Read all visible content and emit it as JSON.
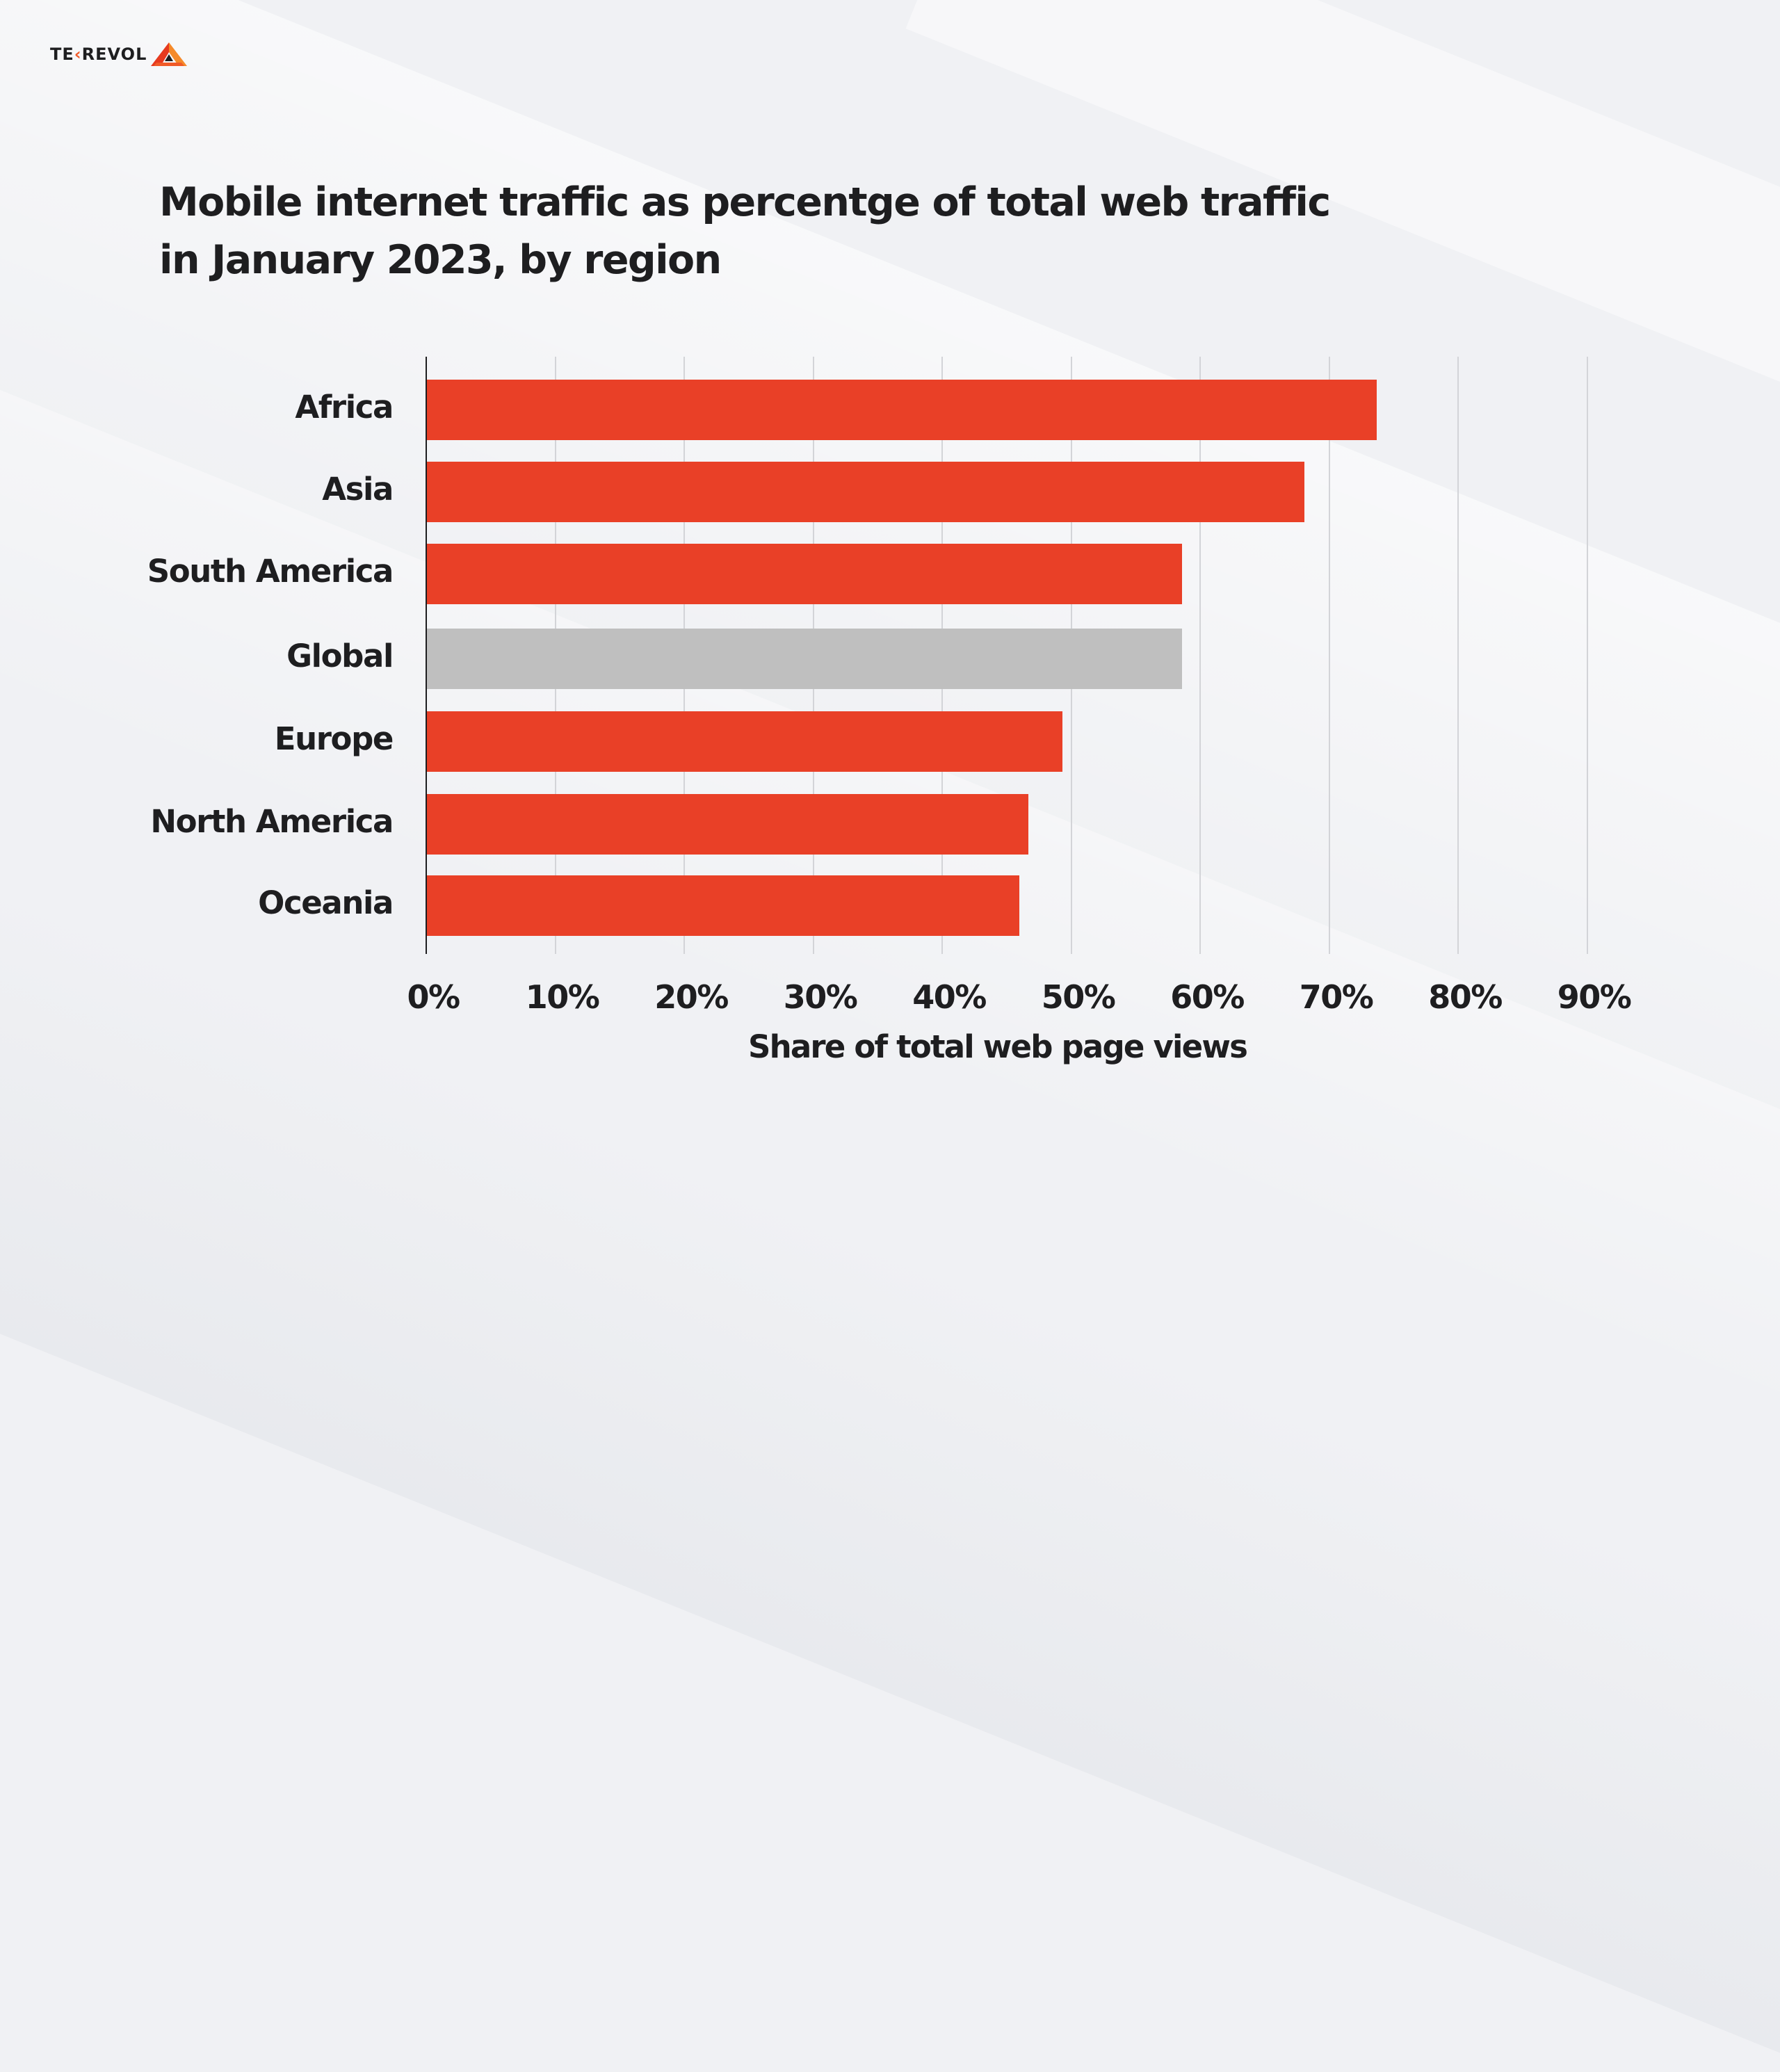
{
  "brand": {
    "logo_text_prefix": "TE",
    "logo_text_accent": "‹",
    "logo_text_suffix": "REVOL",
    "logo_colors": {
      "text": "#1E1E20",
      "accent": "#F05A28",
      "triangle_light": "#F58A2A",
      "triangle_dark": "#E63A1F"
    }
  },
  "title": {
    "line1": "Mobile internet traffic as percentge of total web traffic",
    "line2": "in January 2023, by region"
  },
  "colors": {
    "background": "#F0F1F4",
    "bar_primary": "#E94027",
    "bar_highlight": "#BFBFBF",
    "gridline": "#D3D4D8",
    "axis": "#1E1E20",
    "text": "#1E1E20"
  },
  "chart_data": {
    "type": "bar",
    "orientation": "horizontal",
    "title": "Mobile internet traffic as percentge of total web traffic in January 2023, by region",
    "xlabel": "Share of total web page views",
    "ylabel": "",
    "categories": [
      "Africa",
      "Asia",
      "South America",
      "Global",
      "Europe",
      "North America",
      "Oceania"
    ],
    "values": [
      73.7,
      68.1,
      58.6,
      58.6,
      49.3,
      46.7,
      46.0
    ],
    "bar_colors": [
      "#E94027",
      "#E94027",
      "#E94027",
      "#BFBFBF",
      "#E94027",
      "#E94027",
      "#E94027"
    ],
    "unit": "%",
    "xlim": [
      0,
      90
    ],
    "xticks": [
      0,
      10,
      20,
      30,
      40,
      50,
      60,
      70,
      80,
      90
    ],
    "xtick_labels": [
      "0%",
      "10%",
      "20%",
      "30%",
      "40%",
      "50%",
      "60%",
      "70%",
      "80%",
      "90%"
    ],
    "grid": "vertical",
    "legend": "none"
  }
}
